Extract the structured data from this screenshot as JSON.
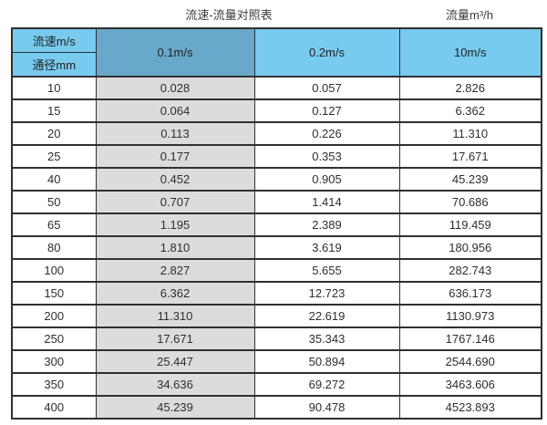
{
  "page": {
    "title_left": "流速-流量对照表",
    "title_right": "流量m³/h"
  },
  "colors": {
    "header_light_blue": "#78cbee",
    "header_dark_blue": "#68a9cb",
    "highlight_column_gray": "#dcdcdc",
    "border_dark": "#303030",
    "background": "#ffffff"
  },
  "table": {
    "corner_top": "流速m/s",
    "corner_bottom": "通径mm",
    "velocity_columns": [
      "0.1m/s",
      "0.2m/s",
      "10m/s"
    ],
    "rows": [
      {
        "dn": "10",
        "values": [
          "0.028",
          "0.057",
          "2.826"
        ]
      },
      {
        "dn": "15",
        "values": [
          "0.064",
          "0.127",
          "6.362"
        ]
      },
      {
        "dn": "20",
        "values": [
          "0.113",
          "0.226",
          "11.310"
        ]
      },
      {
        "dn": "25",
        "values": [
          "0.177",
          "0.353",
          "17.671"
        ]
      },
      {
        "dn": "40",
        "values": [
          "0.452",
          "0.905",
          "45.239"
        ]
      },
      {
        "dn": "50",
        "values": [
          "0.707",
          "1.414",
          "70.686"
        ]
      },
      {
        "dn": "65",
        "values": [
          "1.195",
          "2.389",
          "119.459"
        ]
      },
      {
        "dn": "80",
        "values": [
          "1.810",
          "3.619",
          "180.956"
        ]
      },
      {
        "dn": "100",
        "values": [
          "2.827",
          "5.655",
          "282.743"
        ]
      },
      {
        "dn": "150",
        "values": [
          "6.362",
          "12.723",
          "636.173"
        ]
      },
      {
        "dn": "200",
        "values": [
          "11.310",
          "22.619",
          "1130.973"
        ]
      },
      {
        "dn": "250",
        "values": [
          "17.671",
          "35.343",
          "1767.146"
        ]
      },
      {
        "dn": "300",
        "values": [
          "25.447",
          "50.894",
          "2544.690"
        ]
      },
      {
        "dn": "350",
        "values": [
          "34.636",
          "69.272",
          "3463.606"
        ]
      },
      {
        "dn": "400",
        "values": [
          "45.239",
          "90.478",
          "4523.893"
        ]
      }
    ]
  }
}
